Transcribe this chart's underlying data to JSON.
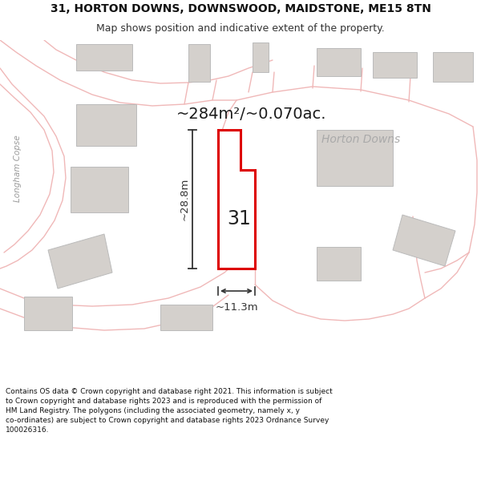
{
  "title_line1": "31, HORTON DOWNS, DOWNSWOOD, MAIDSTONE, ME15 8TN",
  "title_line2": "Map shows position and indicative extent of the property.",
  "area_text": "~284m²/~0.070ac.",
  "property_number": "31",
  "dim_width": "~11.3m",
  "dim_height": "~28.8m",
  "road_label": "Horton Downs",
  "road_label2": "Longham Copse",
  "footer_line1": "Contains OS data © Crown copyright and database right 2021. This information is subject",
  "footer_line2": "to Crown copyright and database rights 2023 and is reproduced with the permission of",
  "footer_line3": "HM Land Registry. The polygons (including the associated geometry, namely x, y",
  "footer_line4": "co-ordinates) are subject to Crown copyright and database rights 2023 Ordnance Survey",
  "footer_line5": "100026316.",
  "bg_color": "#ffffff",
  "map_bg": "#f2ede8",
  "property_fill": "#ffffff",
  "property_edge": "#dd0000",
  "road_color": "#f0b8b8",
  "road_outline_color": "#e88888",
  "building_fill": "#d4d0cc",
  "building_edge": "#bbbbbb",
  "dim_color": "#333333",
  "area_fontsize": 15,
  "title_fontsize": 10,
  "subtitle_fontsize": 9
}
